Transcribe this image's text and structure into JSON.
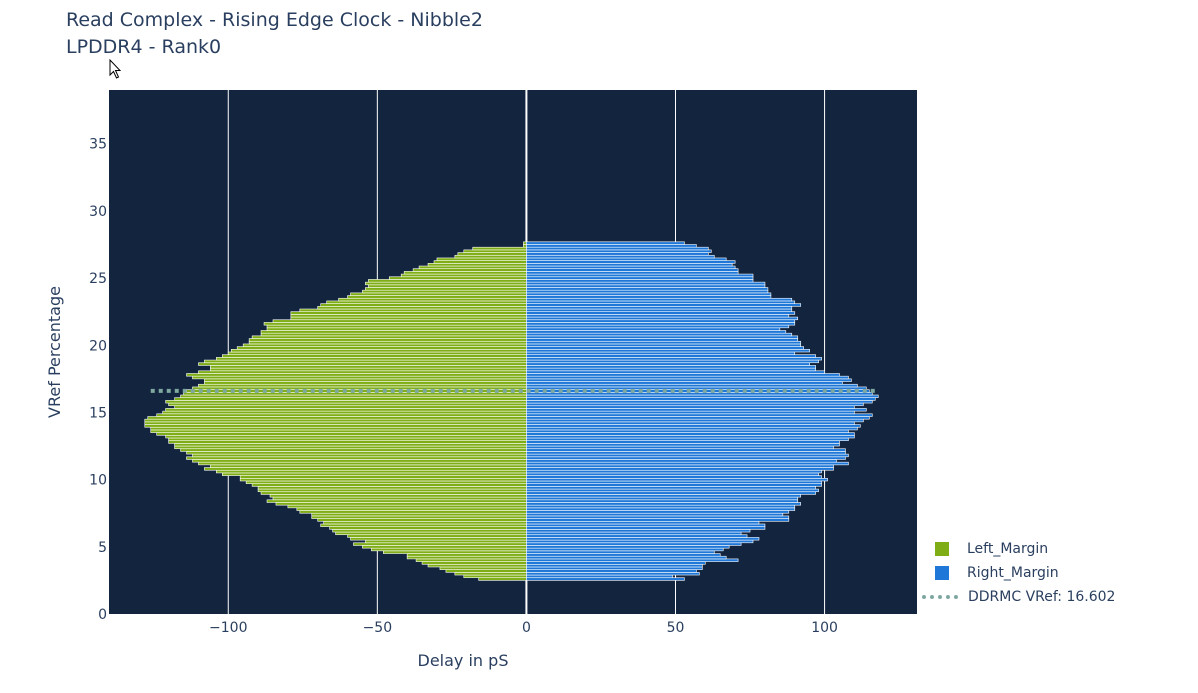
{
  "title": {
    "line1": "Read Complex - Rising Edge Clock - Nibble2",
    "line2": "LPDDR4 - Rank0"
  },
  "chart_data": {
    "type": "bar",
    "orientation": "horizontal",
    "xlabel": "Delay in pS",
    "ylabel": "VRef Percentage",
    "xlim": [
      -140,
      131
    ],
    "ylim": [
      0,
      39
    ],
    "xticks": [
      -100,
      -50,
      0,
      50,
      100
    ],
    "yticks": [
      0,
      5,
      10,
      15,
      20,
      25,
      30,
      35
    ],
    "grid": "vertical",
    "background": "#13243e",
    "legend_position": "bottom-right",
    "vref_line": {
      "name": "DDRMC VRef: 16.602",
      "value": 16.602,
      "color": "#7fa8a0"
    },
    "vref": [
      2.6,
      2.8,
      3.0,
      3.2,
      3.4,
      3.6,
      3.8,
      4.0,
      4.2,
      4.4,
      4.6,
      4.8,
      5.0,
      5.2,
      5.4,
      5.6,
      5.8,
      6.0,
      6.2,
      6.4,
      6.6,
      6.8,
      7.0,
      7.2,
      7.4,
      7.6,
      7.8,
      8.0,
      8.2,
      8.4,
      8.6,
      8.8,
      9.0,
      9.2,
      9.4,
      9.6,
      9.8,
      10.0,
      10.2,
      10.4,
      10.6,
      10.8,
      11.0,
      11.2,
      11.4,
      11.6,
      11.8,
      12.0,
      12.2,
      12.4,
      12.6,
      12.8,
      13.0,
      13.2,
      13.4,
      13.6,
      13.8,
      14.0,
      14.2,
      14.4,
      14.6,
      14.8,
      15.0,
      15.2,
      15.4,
      15.6,
      15.8,
      16.0,
      16.2,
      16.4,
      16.6,
      16.8,
      17.0,
      17.2,
      17.4,
      17.6,
      17.8,
      18.0,
      18.2,
      18.4,
      18.6,
      18.8,
      19.0,
      19.2,
      19.4,
      19.6,
      19.8,
      20.0,
      20.2,
      20.4,
      20.6,
      20.8,
      21.0,
      21.2,
      21.4,
      21.6,
      21.8,
      22.0,
      22.2,
      22.4,
      22.6,
      22.8,
      23.0,
      23.2,
      23.4,
      23.6,
      23.8,
      24.0,
      24.2,
      24.4,
      24.6,
      24.8,
      25.0,
      25.2,
      25.4,
      25.6,
      25.8,
      26.0,
      26.2,
      26.4,
      26.6,
      26.8,
      27.0,
      27.2,
      27.4,
      27.6
    ],
    "series": [
      {
        "name": "Left_Margin",
        "color": "#7fad15",
        "values": [
          -16,
          -21,
          -24,
          -27,
          -29,
          -33,
          -35,
          -37,
          -40,
          -40,
          -48,
          -52,
          -55,
          -58,
          -54,
          -59,
          -60,
          -64,
          -65,
          -66,
          -69,
          -68,
          -70,
          -72,
          -72,
          -76,
          -77,
          -80,
          -84,
          -87,
          -85,
          -86,
          -89,
          -90,
          -90,
          -92,
          -94,
          -96,
          -96,
          -102,
          -104,
          -108,
          -106,
          -110,
          -112,
          -114,
          -112,
          -114,
          -116,
          -118,
          -118,
          -120,
          -120,
          -121,
          -124,
          -126,
          -126,
          -128,
          -128,
          -128,
          -127,
          -124,
          -122,
          -121,
          -118,
          -120,
          -121,
          -118,
          -116,
          -115,
          -114,
          -112,
          -110,
          -108,
          -108,
          -112,
          -114,
          -110,
          -106,
          -106,
          -110,
          -108,
          -104,
          -102,
          -100,
          -99,
          -97,
          -95,
          -93,
          -93,
          -92,
          -89,
          -89,
          -87,
          -87,
          -88,
          -85,
          -79,
          -79,
          -79,
          -76,
          -70,
          -69,
          -67,
          -63,
          -60,
          -59,
          -55,
          -54,
          -53,
          -54,
          -53,
          -46,
          -42,
          -41,
          -38,
          -36,
          -33,
          -31,
          -30,
          -24,
          -23,
          -21,
          -18,
          -1,
          -1
        ]
      },
      {
        "name": "Right_Margin",
        "color": "#1f78d8",
        "values": [
          53,
          49,
          58,
          57,
          59,
          59,
          60,
          71,
          67,
          65,
          63,
          66,
          68,
          72,
          76,
          78,
          74,
          72,
          75,
          80,
          80,
          78,
          88,
          88,
          86,
          88,
          90,
          90,
          92,
          91,
          91,
          92,
          97,
          98,
          97,
          99,
          99,
          101,
          99,
          98,
          99,
          103,
          103,
          108,
          104,
          107,
          108,
          107,
          107,
          103,
          105,
          105,
          108,
          110,
          110,
          108,
          111,
          112,
          110,
          113,
          115,
          116,
          110,
          114,
          110,
          113,
          116,
          117,
          118,
          116,
          115,
          114,
          111,
          106,
          109,
          108,
          105,
          100,
          97,
          97,
          95,
          98,
          99,
          97,
          90,
          95,
          93,
          92,
          92,
          91,
          91,
          89,
          87,
          85,
          88,
          90,
          90,
          91,
          88,
          90,
          89,
          89,
          92,
          90,
          89,
          82,
          82,
          81,
          81,
          80,
          80,
          76,
          76,
          76,
          71,
          71,
          70,
          69,
          70,
          67,
          63,
          61,
          62,
          61,
          57,
          53
        ]
      }
    ]
  }
}
